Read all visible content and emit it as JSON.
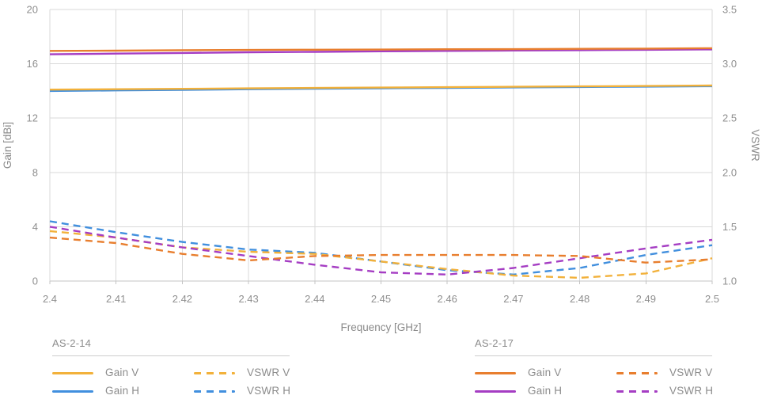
{
  "chart_data": {
    "type": "line",
    "xlabel": "Frequency [GHz]",
    "ylabel_left": "Gain [dBi]",
    "ylabel_right": "VSWR",
    "grid": true,
    "x_axis": {
      "min": 2.4,
      "max": 2.5,
      "ticks": [
        2.4,
        2.41,
        2.42,
        2.43,
        2.44,
        2.45,
        2.46,
        2.47,
        2.48,
        2.49,
        2.5
      ],
      "tick_labels": [
        "2.4",
        "2.41",
        "2.42",
        "2.43",
        "2.44",
        "2.45",
        "2.46",
        "2.47",
        "2.48",
        "2.49",
        "2.5"
      ]
    },
    "y_axis_left": {
      "min": 0,
      "max": 20,
      "ticks": [
        0,
        4,
        8,
        12,
        16,
        20
      ],
      "tick_labels": [
        "0",
        "4",
        "8",
        "12",
        "16",
        "20"
      ]
    },
    "y_axis_right": {
      "min": 1.0,
      "max": 3.5,
      "ticks": [
        1.0,
        1.5,
        2.0,
        2.5,
        3.0,
        3.5
      ],
      "tick_labels": [
        "1.0",
        "1.5",
        "2.0",
        "2.5",
        "3.0",
        "3.5"
      ]
    },
    "x": [
      2.4,
      2.41,
      2.42,
      2.43,
      2.44,
      2.45,
      2.46,
      2.47,
      2.48,
      2.49,
      2.5
    ],
    "series": [
      {
        "name": "AS-2-14 Gain H",
        "group": "AS-2-14",
        "label": "Gain H",
        "axis": "left",
        "style": "solid",
        "color": "#418FDE",
        "values": [
          14.0,
          14.04,
          14.08,
          14.13,
          14.17,
          14.2,
          14.23,
          14.26,
          14.29,
          14.32,
          14.35
        ]
      },
      {
        "name": "AS-2-14 Gain V",
        "group": "AS-2-14",
        "label": "Gain V",
        "axis": "left",
        "style": "solid",
        "color": "#F2B13B",
        "values": [
          14.1,
          14.13,
          14.16,
          14.19,
          14.22,
          14.25,
          14.28,
          14.31,
          14.34,
          14.37,
          14.4
        ]
      },
      {
        "name": "AS-2-17 Gain H",
        "group": "AS-2-17",
        "label": "Gain H",
        "axis": "left",
        "style": "solid",
        "color": "#A53DC3",
        "values": [
          16.7,
          16.75,
          16.8,
          16.85,
          16.88,
          16.92,
          16.95,
          16.98,
          17.0,
          17.03,
          17.06
        ]
      },
      {
        "name": "AS-2-17 Gain V",
        "group": "AS-2-17",
        "label": "Gain V",
        "axis": "left",
        "style": "solid",
        "color": "#E87E2E",
        "values": [
          16.95,
          16.97,
          17.0,
          17.02,
          17.04,
          17.05,
          17.07,
          17.08,
          17.1,
          17.12,
          17.15
        ]
      },
      {
        "name": "AS-2-14 VSWR H",
        "group": "AS-2-14",
        "label": "VSWR H",
        "axis": "right",
        "style": "dashed",
        "color": "#418FDE",
        "values": [
          1.55,
          1.45,
          1.36,
          1.29,
          1.26,
          1.18,
          1.1,
          1.06,
          1.12,
          1.24,
          1.33
        ]
      },
      {
        "name": "AS-2-14 VSWR V",
        "group": "AS-2-14",
        "label": "VSWR V",
        "axis": "right",
        "style": "dashed",
        "color": "#F2B13B",
        "values": [
          1.46,
          1.4,
          1.31,
          1.27,
          1.25,
          1.18,
          1.11,
          1.05,
          1.03,
          1.07,
          1.21
        ]
      },
      {
        "name": "AS-2-17 VSWR H",
        "group": "AS-2-17",
        "label": "VSWR H",
        "axis": "right",
        "style": "dashed",
        "color": "#A53DC3",
        "values": [
          1.5,
          1.4,
          1.31,
          1.23,
          1.15,
          1.08,
          1.06,
          1.12,
          1.21,
          1.3,
          1.38
        ]
      },
      {
        "name": "AS-2-17 VSWR V",
        "group": "AS-2-17",
        "label": "VSWR V",
        "axis": "right",
        "style": "dashed",
        "color": "#E87E2E",
        "values": [
          1.4,
          1.35,
          1.25,
          1.19,
          1.23,
          1.24,
          1.24,
          1.24,
          1.23,
          1.17,
          1.2
        ]
      }
    ],
    "legend": {
      "position": "bottom",
      "groups": [
        {
          "title": "AS-2-14",
          "entries": [
            {
              "label": "Gain V",
              "style": "solid",
              "color": "#F2B13B"
            },
            {
              "label": "VSWR V",
              "style": "dashed",
              "color": "#F2B13B"
            },
            {
              "label": "Gain H",
              "style": "solid",
              "color": "#418FDE"
            },
            {
              "label": "VSWR H",
              "style": "dashed",
              "color": "#418FDE"
            }
          ]
        },
        {
          "title": "AS-2-17",
          "entries": [
            {
              "label": "Gain V",
              "style": "solid",
              "color": "#E87E2E"
            },
            {
              "label": "VSWR V",
              "style": "dashed",
              "color": "#E87E2E"
            },
            {
              "label": "Gain H",
              "style": "solid",
              "color": "#A53DC3"
            },
            {
              "label": "VSWR H",
              "style": "dashed",
              "color": "#A53DC3"
            }
          ]
        }
      ]
    },
    "style_colors": {
      "gridline": "#d9d9d9",
      "axis_line": "#c4c4c4",
      "text": "#8f8f8f"
    }
  }
}
